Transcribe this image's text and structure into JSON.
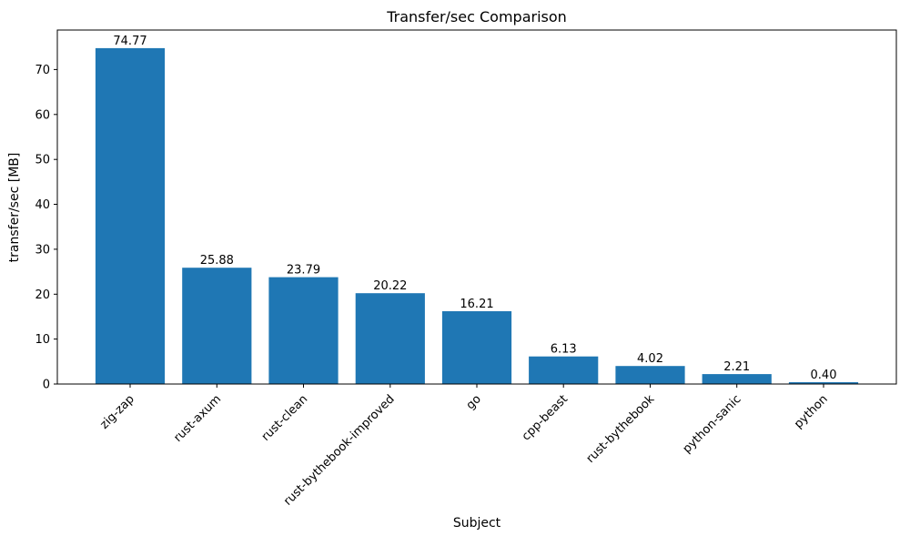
{
  "chart_data": {
    "type": "bar",
    "title": "Transfer/sec Comparison",
    "xlabel": "Subject",
    "ylabel": "transfer/sec [MB]",
    "categories": [
      "zig-zap",
      "rust-axum",
      "rust-clean",
      "rust-bythebook-improved",
      "go",
      "cpp-beast",
      "rust-bythebook",
      "python-sanic",
      "python"
    ],
    "values": [
      74.77,
      25.88,
      23.79,
      20.22,
      16.21,
      6.13,
      4.02,
      2.21,
      0.4
    ],
    "value_labels": [
      "74.77",
      "25.88",
      "23.79",
      "20.22",
      "16.21",
      "6.13",
      "4.02",
      "2.21",
      "0.40"
    ],
    "bar_color": "#1f77b4",
    "ylim": [
      0,
      78.8
    ],
    "yticks": [
      0,
      10,
      20,
      30,
      40,
      50,
      60,
      70
    ],
    "tick_label_rotation": 45,
    "grid": false,
    "legend": null
  }
}
